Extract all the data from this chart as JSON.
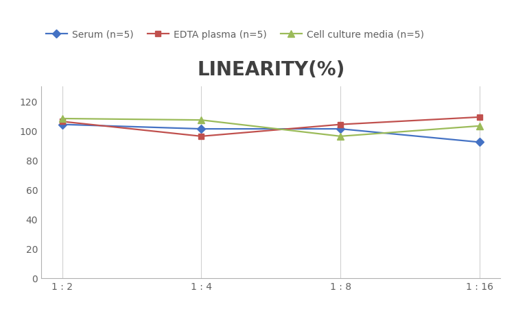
{
  "title": "LINEARITY(%)",
  "x_tick_labels": [
    "1 : 2",
    "1 : 4",
    "1 : 8",
    "1 : 16"
  ],
  "series": [
    {
      "label": "Serum (n=5)",
      "values": [
        104,
        101,
        101,
        92
      ],
      "color": "#4472C4",
      "marker": "D",
      "markersize": 6,
      "linewidth": 1.6
    },
    {
      "label": "EDTA plasma (n=5)",
      "values": [
        106,
        96,
        104,
        109
      ],
      "color": "#C0504D",
      "marker": "s",
      "markersize": 6,
      "linewidth": 1.6
    },
    {
      "label": "Cell culture media (n=5)",
      "values": [
        108,
        107,
        96,
        103
      ],
      "color": "#9BBB59",
      "marker": "^",
      "markersize": 7,
      "linewidth": 1.6
    }
  ],
  "ylim": [
    0,
    130
  ],
  "yticks": [
    0,
    20,
    40,
    60,
    80,
    100,
    120
  ],
  "background_color": "#ffffff",
  "grid_color": "#d0d0d0",
  "title_fontsize": 20,
  "title_color": "#404040",
  "legend_fontsize": 10,
  "tick_fontsize": 10,
  "tick_color": "#606060"
}
